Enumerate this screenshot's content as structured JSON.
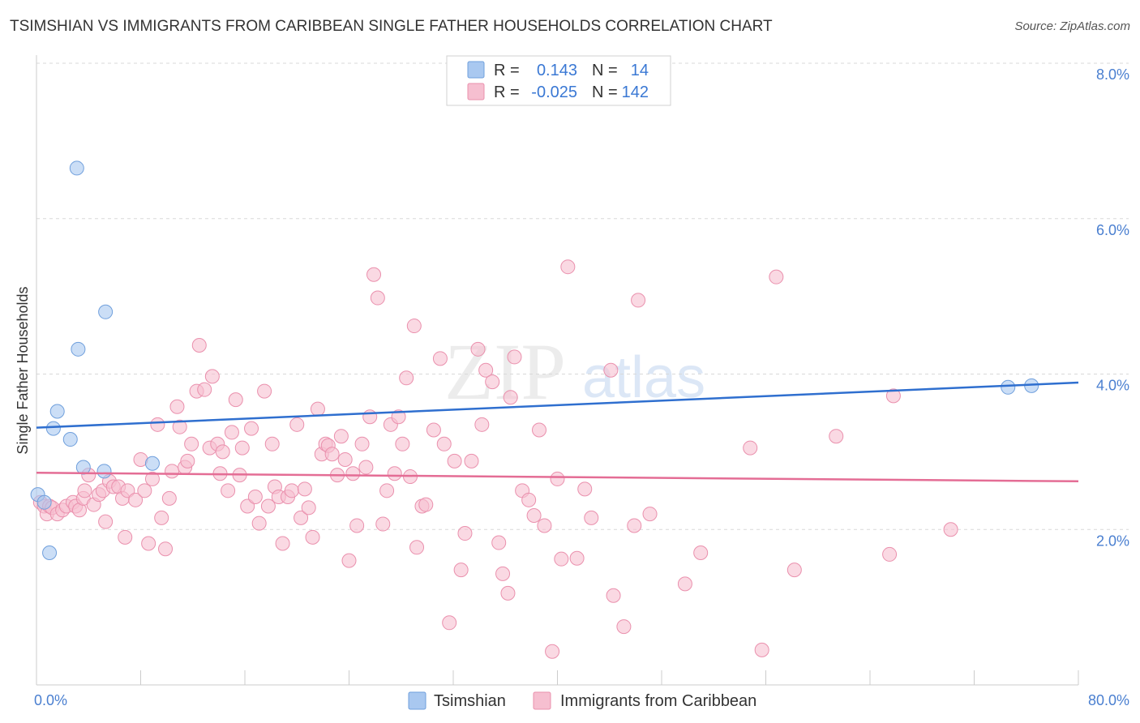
{
  "title": "TSIMSHIAN VS IMMIGRANTS FROM CARIBBEAN SINGLE FATHER HOUSEHOLDS CORRELATION CHART",
  "source": "Source: ZipAtlas.com",
  "watermark": {
    "zip": "ZIP",
    "atlas": "atlas"
  },
  "colors": {
    "blue_fill": "#a9c8f0",
    "blue_stroke": "#6f9fdc",
    "blue_line": "#2f6fcf",
    "pink_fill": "#f6bfd0",
    "pink_stroke": "#ea90ad",
    "pink_line": "#e46d95",
    "grid": "#d9d9d9",
    "tick_text": "#4a7fd0"
  },
  "legend": {
    "rows": [
      {
        "r_label": "R =",
        "r_value": "0.143",
        "n_label": "N =",
        "n_value": "14"
      },
      {
        "r_label": "R =",
        "r_value": "-0.025",
        "n_label": "N =",
        "n_value": "142"
      }
    ]
  },
  "chart_data": {
    "type": "scatter",
    "title": "TSIMSHIAN VS IMMIGRANTS FROM CARIBBEAN SINGLE FATHER HOUSEHOLDS CORRELATION CHART",
    "xlabel": "",
    "ylabel": "Single Father Households",
    "xlim": [
      0,
      80
    ],
    "ylim": [
      0,
      8
    ],
    "x_tick_labels": [
      "0.0%",
      "80.0%"
    ],
    "y_ticks": [
      {
        "value": 2,
        "label": "2.0%"
      },
      {
        "value": 4,
        "label": "4.0%"
      },
      {
        "value": 6,
        "label": "6.0%"
      },
      {
        "value": 8,
        "label": "8.0%"
      }
    ],
    "grid": true,
    "legend_position": "top-center",
    "series": [
      {
        "name": "Tsimshian",
        "trend": {
          "x0": 0,
          "y0": 3.31,
          "x1": 80,
          "y1": 3.89
        },
        "points": [
          [
            0.1,
            2.45
          ],
          [
            0.6,
            2.35
          ],
          [
            1.0,
            1.7
          ],
          [
            1.3,
            3.3
          ],
          [
            1.6,
            3.52
          ],
          [
            2.6,
            3.16
          ],
          [
            3.1,
            6.65
          ],
          [
            3.2,
            4.32
          ],
          [
            3.6,
            2.8
          ],
          [
            5.2,
            2.75
          ],
          [
            5.3,
            4.8
          ],
          [
            8.9,
            2.85
          ],
          [
            74.6,
            3.83
          ],
          [
            76.4,
            3.85
          ]
        ]
      },
      {
        "name": "Immigrants from Caribbean",
        "trend": {
          "x0": 0,
          "y0": 2.73,
          "x1": 80,
          "y1": 2.62
        },
        "points": [
          [
            0.3,
            2.35
          ],
          [
            0.6,
            2.3
          ],
          [
            0.8,
            2.2
          ],
          [
            1.0,
            2.3
          ],
          [
            1.2,
            2.28
          ],
          [
            1.6,
            2.2
          ],
          [
            2.0,
            2.25
          ],
          [
            2.3,
            2.3
          ],
          [
            2.8,
            2.35
          ],
          [
            3.0,
            2.3
          ],
          [
            3.3,
            2.25
          ],
          [
            3.6,
            2.4
          ],
          [
            3.7,
            2.5
          ],
          [
            4.0,
            2.7
          ],
          [
            4.4,
            2.32
          ],
          [
            4.8,
            2.45
          ],
          [
            5.1,
            2.5
          ],
          [
            5.3,
            2.1
          ],
          [
            5.6,
            2.62
          ],
          [
            5.9,
            2.55
          ],
          [
            6.3,
            2.55
          ],
          [
            6.6,
            2.4
          ],
          [
            6.8,
            1.9
          ],
          [
            7.0,
            2.5
          ],
          [
            7.6,
            2.38
          ],
          [
            8.0,
            2.9
          ],
          [
            8.3,
            2.5
          ],
          [
            8.6,
            1.82
          ],
          [
            8.9,
            2.65
          ],
          [
            9.3,
            3.35
          ],
          [
            9.6,
            2.15
          ],
          [
            9.9,
            1.75
          ],
          [
            10.2,
            2.4
          ],
          [
            10.4,
            2.75
          ],
          [
            10.8,
            3.58
          ],
          [
            11.0,
            3.32
          ],
          [
            11.4,
            2.8
          ],
          [
            11.6,
            2.88
          ],
          [
            11.9,
            3.1
          ],
          [
            12.3,
            3.78
          ],
          [
            12.5,
            4.37
          ],
          [
            12.9,
            3.8
          ],
          [
            13.3,
            3.05
          ],
          [
            13.5,
            3.97
          ],
          [
            13.9,
            3.1
          ],
          [
            14.1,
            2.72
          ],
          [
            14.3,
            3.0
          ],
          [
            14.7,
            2.5
          ],
          [
            15.0,
            3.25
          ],
          [
            15.3,
            3.67
          ],
          [
            15.6,
            2.7
          ],
          [
            15.8,
            3.05
          ],
          [
            16.2,
            2.3
          ],
          [
            16.5,
            3.3
          ],
          [
            16.8,
            2.42
          ],
          [
            17.1,
            2.08
          ],
          [
            17.5,
            3.78
          ],
          [
            17.8,
            2.3
          ],
          [
            18.1,
            3.1
          ],
          [
            18.3,
            2.55
          ],
          [
            18.6,
            2.42
          ],
          [
            18.9,
            1.82
          ],
          [
            19.3,
            2.42
          ],
          [
            19.6,
            2.5
          ],
          [
            20.0,
            3.35
          ],
          [
            20.3,
            2.15
          ],
          [
            20.6,
            2.52
          ],
          [
            20.9,
            2.28
          ],
          [
            21.2,
            1.9
          ],
          [
            21.6,
            3.55
          ],
          [
            21.9,
            2.97
          ],
          [
            22.2,
            3.1
          ],
          [
            22.4,
            3.08
          ],
          [
            22.7,
            2.97
          ],
          [
            23.1,
            2.7
          ],
          [
            23.4,
            3.2
          ],
          [
            23.7,
            2.9
          ],
          [
            24.0,
            1.6
          ],
          [
            24.3,
            2.72
          ],
          [
            24.6,
            2.05
          ],
          [
            25.0,
            3.1
          ],
          [
            25.3,
            2.8
          ],
          [
            25.6,
            3.45
          ],
          [
            25.9,
            5.28
          ],
          [
            26.2,
            4.98
          ],
          [
            26.6,
            2.07
          ],
          [
            26.9,
            2.5
          ],
          [
            27.2,
            3.35
          ],
          [
            27.5,
            2.72
          ],
          [
            27.8,
            3.45
          ],
          [
            28.1,
            3.1
          ],
          [
            28.4,
            3.95
          ],
          [
            28.7,
            2.68
          ],
          [
            29.0,
            4.62
          ],
          [
            29.2,
            1.77
          ],
          [
            29.6,
            2.3
          ],
          [
            29.9,
            2.32
          ],
          [
            30.5,
            3.28
          ],
          [
            31.0,
            4.2
          ],
          [
            31.3,
            3.1
          ],
          [
            31.7,
            0.8
          ],
          [
            32.1,
            2.88
          ],
          [
            32.6,
            1.48
          ],
          [
            32.9,
            1.95
          ],
          [
            33.4,
            2.88
          ],
          [
            33.9,
            4.32
          ],
          [
            34.2,
            3.35
          ],
          [
            34.5,
            4.05
          ],
          [
            35.0,
            3.9
          ],
          [
            35.5,
            1.83
          ],
          [
            35.8,
            1.43
          ],
          [
            36.2,
            1.18
          ],
          [
            36.4,
            3.7
          ],
          [
            36.7,
            4.22
          ],
          [
            37.3,
            2.5
          ],
          [
            37.8,
            2.38
          ],
          [
            38.2,
            2.18
          ],
          [
            38.6,
            3.28
          ],
          [
            39.0,
            2.05
          ],
          [
            39.6,
            0.43
          ],
          [
            40.0,
            2.65
          ],
          [
            40.3,
            1.62
          ],
          [
            40.8,
            5.38
          ],
          [
            41.5,
            1.63
          ],
          [
            42.1,
            2.52
          ],
          [
            42.6,
            2.15
          ],
          [
            44.1,
            4.05
          ],
          [
            44.3,
            1.15
          ],
          [
            45.1,
            0.75
          ],
          [
            45.9,
            2.05
          ],
          [
            46.2,
            4.95
          ],
          [
            47.1,
            2.2
          ],
          [
            49.8,
            1.3
          ],
          [
            51.0,
            1.7
          ],
          [
            54.8,
            3.05
          ],
          [
            55.7,
            0.45
          ],
          [
            56.8,
            5.25
          ],
          [
            58.2,
            1.48
          ],
          [
            61.4,
            3.2
          ],
          [
            65.5,
            1.68
          ],
          [
            65.8,
            3.72
          ],
          [
            70.2,
            2.0
          ]
        ]
      }
    ]
  },
  "bottom_legend": {
    "series_1": "Tsimshian",
    "series_2": "Immigrants from Caribbean"
  }
}
